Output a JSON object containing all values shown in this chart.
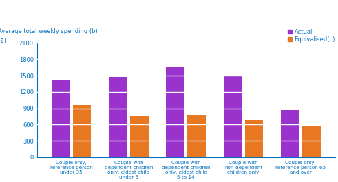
{
  "categories": [
    "Couple only,\nreference person\nunder 35",
    "Couple with\ndependent children\nonly, eldest child\nunder 5",
    "Couple with\ndependent children\nonly, eldest child\n5 to 14",
    "Couple with\nnon-dependent\nchildren only",
    "Couple only,\nreference person 65\nand over"
  ],
  "actual_values": [
    1420,
    1480,
    1650,
    1500,
    870
  ],
  "equivalised_values": [
    960,
    760,
    780,
    690,
    570
  ],
  "actual_color": "#9933cc",
  "equivalised_color": "#e87722",
  "ylabel_line1": "Average total weekly spending (b)",
  "ylabel_line2": "($)",
  "ylim": [
    0,
    2100
  ],
  "yticks": [
    0,
    300,
    600,
    900,
    1200,
    1500,
    1800,
    2100
  ],
  "legend_labels": [
    "Actual",
    "Equivalised(c)"
  ],
  "bar_width": 0.32,
  "grid_color": "#ffffff",
  "bg_color": "#ffffff",
  "text_color": "#0070c0",
  "bar_gap": 0.05
}
